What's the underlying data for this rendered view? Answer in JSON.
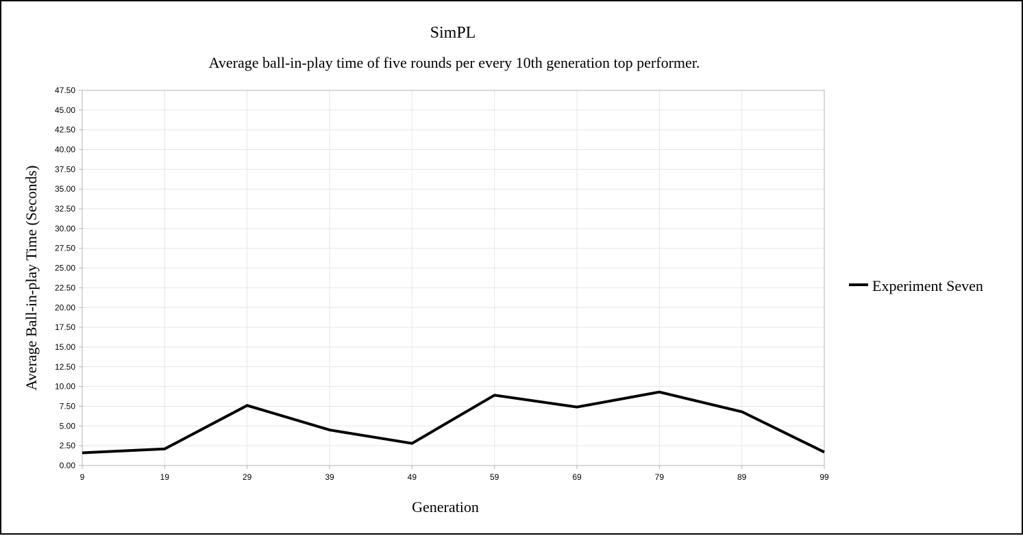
{
  "chart_data": {
    "type": "line",
    "title": "SimPL",
    "subtitle": "Average ball-in-play time of five rounds per every 10th generation top performer.",
    "xlabel": "Generation",
    "ylabel": "Average Ball-in-play Time (Seconds)",
    "x": [
      9,
      19,
      29,
      39,
      49,
      59,
      69,
      79,
      89,
      99
    ],
    "x_tick_labels": [
      "9",
      "19",
      "29",
      "39",
      "49",
      "59",
      "69",
      "79",
      "89",
      "99"
    ],
    "ylim": [
      0,
      47.5
    ],
    "y_ticks": [
      0,
      2.5,
      5,
      7.5,
      10,
      12.5,
      15,
      17.5,
      20,
      22.5,
      25,
      27.5,
      30,
      32.5,
      35,
      37.5,
      40,
      42.5,
      45,
      47.5
    ],
    "y_tick_labels": [
      "0.00",
      "2.50",
      "5.00",
      "7.50",
      "10.00",
      "12.50",
      "15.00",
      "17.50",
      "20.00",
      "22.50",
      "25.00",
      "27.50",
      "30.00",
      "32.50",
      "35.00",
      "37.50",
      "40.00",
      "42.50",
      "45.00",
      "47.50"
    ],
    "grid": true,
    "legend_position": "right",
    "series": [
      {
        "name": "Experiment Seven",
        "color": "#000000",
        "values": [
          1.6,
          2.1,
          7.6,
          4.5,
          2.8,
          8.9,
          7.4,
          9.3,
          6.8,
          1.7
        ]
      }
    ]
  }
}
